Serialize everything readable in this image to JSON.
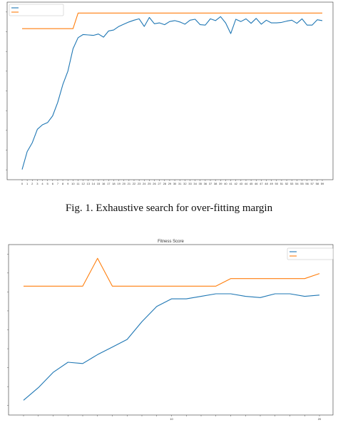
{
  "caption1": "Fig. 1.  Exhaustive search for over-fitting margin",
  "colors": {
    "avg": "#1f77b4",
    "best": "#ff7f0e",
    "axis": "#333333"
  },
  "chart_data": [
    {
      "type": "line",
      "title": "",
      "xlabel": "",
      "ylabel": "",
      "legend_position": "top-left",
      "grid": false,
      "x": [
        0,
        1,
        2,
        3,
        4,
        5,
        6,
        7,
        8,
        9,
        10,
        11,
        12,
        13,
        14,
        15,
        16,
        17,
        18,
        19,
        20,
        21,
        22,
        23,
        24,
        25,
        26,
        27,
        28,
        29,
        30,
        31,
        32,
        33,
        34,
        35,
        36,
        37,
        38,
        39,
        40,
        41,
        42,
        43,
        44,
        45,
        46,
        47,
        48,
        49,
        50,
        51,
        52,
        53,
        54,
        55,
        56,
        57,
        58,
        59
      ],
      "x_ticks": [
        "0",
        "1",
        "2",
        "3",
        "4",
        "5",
        "6",
        "7",
        "8",
        "9",
        "10",
        "11",
        "12",
        "13",
        "14",
        "15",
        "16",
        "17",
        "18",
        "19",
        "20",
        "21",
        "22",
        "23",
        "24",
        "25",
        "26",
        "27",
        "28",
        "29",
        "30",
        "31",
        "32",
        "33",
        "34",
        "35",
        "36",
        "37",
        "38",
        "39",
        "40",
        "41",
        "42",
        "43",
        "44",
        "45",
        "46",
        "47",
        "48",
        "49",
        "50",
        "51",
        "52",
        "53",
        "54",
        "55",
        "56",
        "57",
        "58",
        "59"
      ],
      "ylim": [
        0.5,
        4.2
      ],
      "y_ticks": [],
      "series": [
        {
          "name": "",
          "values": [
            0.6,
            1.0,
            1.2,
            1.5,
            1.6,
            1.65,
            1.8,
            2.1,
            2.5,
            2.8,
            3.3,
            3.55,
            3.62,
            3.61,
            3.6,
            3.63,
            3.56,
            3.7,
            3.72,
            3.8,
            3.85,
            3.9,
            3.94,
            3.97,
            3.8,
            4.0,
            3.86,
            3.88,
            3.84,
            3.91,
            3.93,
            3.9,
            3.85,
            3.94,
            3.96,
            3.84,
            3.83,
            3.97,
            3.93,
            4.02,
            3.88,
            3.64,
            3.96,
            3.91,
            3.97,
            3.87,
            3.98,
            3.85,
            3.94,
            3.88,
            3.88,
            3.89,
            3.92,
            3.94,
            3.87,
            3.97,
            3.83,
            3.83,
            3.95,
            3.93
          ]
        },
        {
          "name": "",
          "values": [
            3.75,
            3.75,
            3.75,
            3.75,
            3.75,
            3.75,
            3.75,
            3.75,
            3.75,
            3.75,
            3.75,
            4.1,
            4.1,
            4.1,
            4.1,
            4.1,
            4.1,
            4.1,
            4.1,
            4.1,
            4.1,
            4.1,
            4.1,
            4.1,
            4.1,
            4.1,
            4.1,
            4.1,
            4.1,
            4.1,
            4.1,
            4.1,
            4.1,
            4.1,
            4.1,
            4.1,
            4.1,
            4.1,
            4.1,
            4.1,
            4.1,
            4.1,
            4.1,
            4.1,
            4.1,
            4.1,
            4.1,
            4.1,
            4.1,
            4.1,
            4.1,
            4.1,
            4.1,
            4.1,
            4.1,
            4.1,
            4.1,
            4.1,
            4.1,
            4.1
          ]
        }
      ]
    },
    {
      "type": "line",
      "title": "Fitness Score",
      "xlabel": "",
      "ylabel": "",
      "legend_position": "top-right",
      "grid": false,
      "x": [
        0,
        1,
        2,
        3,
        4,
        5,
        6,
        7,
        8,
        9,
        10,
        11,
        12,
        13,
        14,
        15,
        16,
        17,
        18,
        19,
        20
      ],
      "x_ticks": [
        "",
        "",
        "",
        "",
        "",
        "",
        "",
        "",
        "",
        "",
        "10",
        "",
        "",
        "",
        "",
        "",
        "",
        "",
        "",
        "",
        "20"
      ],
      "ylim": [
        0,
        6.3
      ],
      "y_ticks": [],
      "series": [
        {
          "name": "",
          "values": [
            0.3,
            0.8,
            1.4,
            1.8,
            1.75,
            2.1,
            2.4,
            2.7,
            3.4,
            4.0,
            4.3,
            4.3,
            4.4,
            4.5,
            4.5,
            4.4,
            4.35,
            4.5,
            4.5,
            4.4,
            4.45
          ]
        },
        {
          "name": "",
          "values": [
            4.8,
            4.8,
            4.8,
            4.8,
            4.8,
            5.9,
            4.8,
            4.8,
            4.8,
            4.8,
            4.8,
            4.8,
            4.8,
            4.8,
            5.1,
            5.1,
            5.1,
            5.1,
            5.1,
            5.1,
            5.3
          ]
        }
      ]
    }
  ]
}
